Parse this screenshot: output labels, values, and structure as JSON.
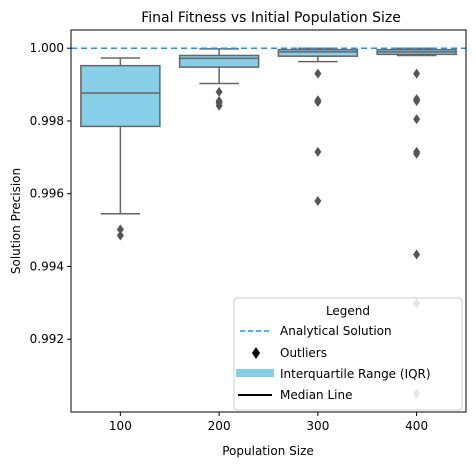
{
  "chart_data": {
    "type": "box",
    "title": "Final Fitness vs Initial Population Size",
    "xlabel": "Population Size",
    "ylabel": "Solution Precision",
    "categories": [
      "100",
      "200",
      "300",
      "400"
    ],
    "ylim": [
      0.99,
      1.0005
    ],
    "yticks": [
      "0.992",
      "0.994",
      "0.996",
      "0.998",
      "1.000"
    ],
    "reference_line": {
      "label": "Analytical Solution",
      "value": 1.0,
      "color": "#1e90ff"
    },
    "boxes": [
      {
        "category": "100",
        "whislo": 0.99545,
        "q1": 0.99785,
        "median": 0.99877,
        "q3": 0.99952,
        "whishi": 0.99973,
        "fliers": [
          0.99502,
          0.99485
        ]
      },
      {
        "category": "200",
        "whislo": 0.99903,
        "q1": 0.99948,
        "median": 0.99972,
        "q3": 0.9998,
        "whishi": 0.99998,
        "fliers": [
          0.9988,
          0.99855,
          0.9985,
          0.99842
        ]
      },
      {
        "category": "300",
        "whislo": 0.99963,
        "q1": 0.99978,
        "median": 0.9999,
        "q3": 0.99996,
        "whishi": 1.0,
        "fliers": [
          0.9993,
          0.99857,
          0.99852,
          0.99715,
          0.9958
        ]
      },
      {
        "category": "400",
        "whislo": 0.9998,
        "q1": 0.99983,
        "median": 0.9999,
        "q3": 0.99996,
        "whishi": 1.0,
        "fliers": [
          0.9993,
          0.9986,
          0.99855,
          0.99805,
          0.99715,
          0.9971,
          0.99433,
          0.99298,
          0.9905
        ]
      }
    ],
    "colors": {
      "box_fill": "#87cee9",
      "box_edge": "#666666",
      "flier": "#555555"
    },
    "grid": false,
    "legend": {
      "title": "Legend",
      "position": "lower-right",
      "entries": [
        {
          "label": "Analytical Solution",
          "marker": "dashed-line",
          "color": "#1e90ff"
        },
        {
          "label": "Outliers",
          "marker": "diamond",
          "color": "#000000"
        },
        {
          "label": "Interquartile Range (IQR)",
          "marker": "thick-line",
          "color": "#87cee9"
        },
        {
          "label": "Median Line",
          "marker": "line",
          "color": "#000000"
        }
      ]
    }
  }
}
